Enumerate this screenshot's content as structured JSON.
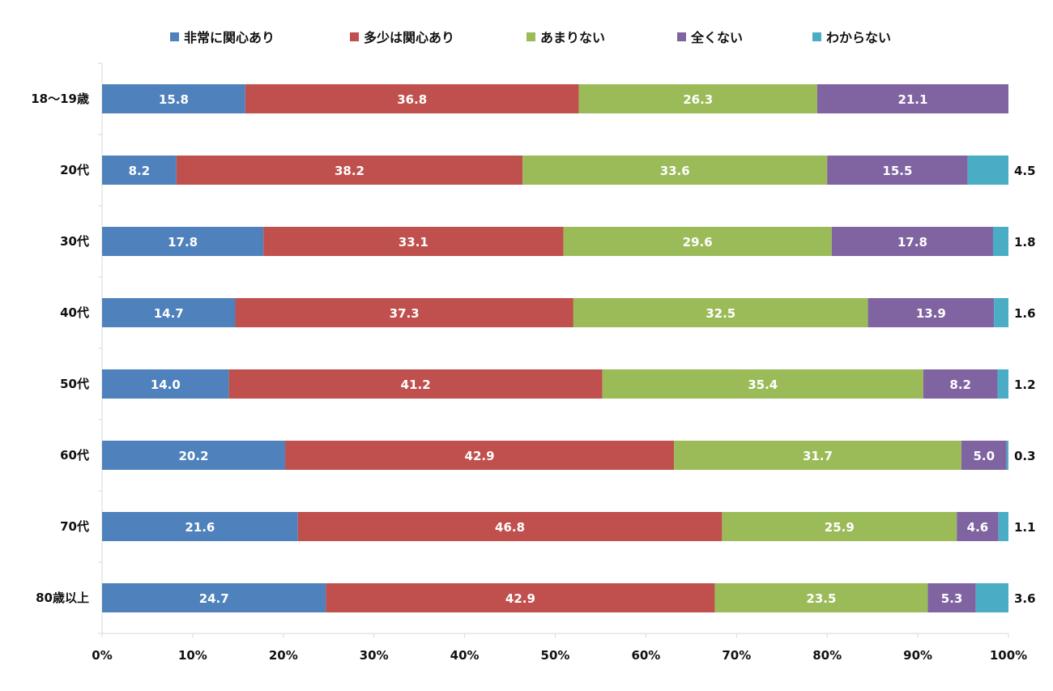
{
  "chart_data": {
    "type": "bar",
    "orientation": "horizontal",
    "stacked": true,
    "categories": [
      "18～19歳",
      "20代",
      "30代",
      "40代",
      "50代",
      "60代",
      "70代",
      "80歳以上"
    ],
    "series": [
      {
        "name": "非常に関心あり",
        "color": "#4f81bd",
        "values": [
          15.8,
          8.2,
          17.8,
          14.7,
          14.0,
          20.2,
          21.6,
          24.7
        ]
      },
      {
        "name": "多少は関心あり",
        "color": "#c0504d",
        "values": [
          36.8,
          38.2,
          33.1,
          37.3,
          41.2,
          42.9,
          46.8,
          42.9
        ]
      },
      {
        "name": "あまりない",
        "color": "#9bbb59",
        "values": [
          26.3,
          33.6,
          29.6,
          32.5,
          35.4,
          31.7,
          25.9,
          23.5
        ]
      },
      {
        "name": "全くない",
        "color": "#8064a2",
        "values": [
          21.1,
          15.5,
          17.8,
          13.9,
          8.2,
          5.0,
          4.6,
          5.3
        ]
      },
      {
        "name": "わからない",
        "color": "#4bacc6",
        "values": [
          0.0,
          4.5,
          1.8,
          1.6,
          1.2,
          0.3,
          1.1,
          3.6
        ]
      }
    ],
    "x_ticks": [
      "0%",
      "10%",
      "20%",
      "30%",
      "40%",
      "50%",
      "60%",
      "70%",
      "80%",
      "90%",
      "100%"
    ],
    "xlim": [
      0,
      100
    ],
    "legend_position": "top",
    "grid": false
  }
}
